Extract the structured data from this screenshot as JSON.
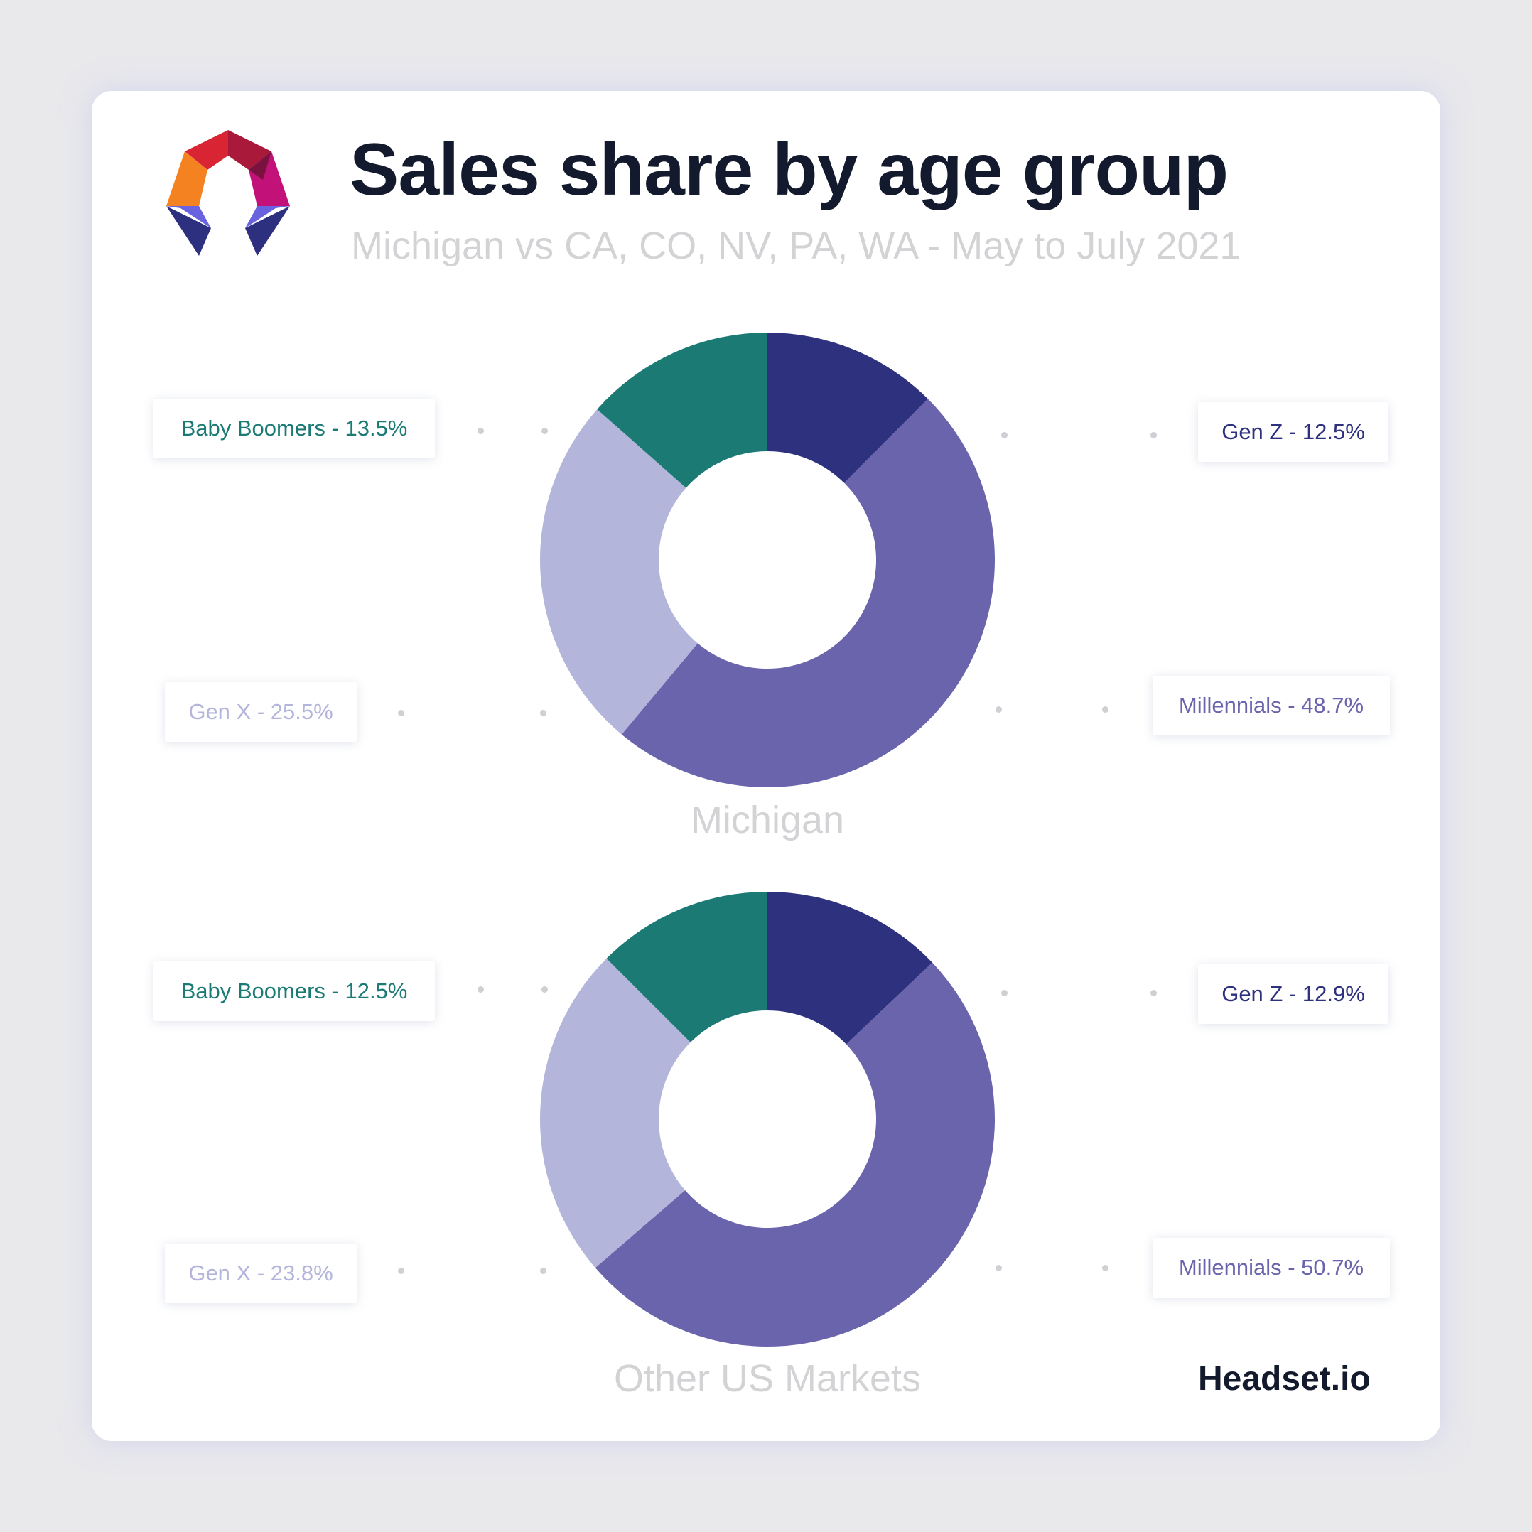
{
  "header": {
    "title": "Sales share by age group",
    "subtitle": "Michigan vs CA, CO, NV, PA, WA - May to July 2021"
  },
  "brand": "Headset.io",
  "colors": {
    "gen_z": "#2e317e",
    "millennials": "#6a64ad",
    "gen_x": "#b4b5db",
    "baby_boomers": "#1c7a74"
  },
  "icons": {
    "logo": "headset-logo-icon"
  },
  "chart_data": [
    {
      "type": "pie",
      "title": "Michigan",
      "categories": [
        "Gen Z",
        "Millennials",
        "Gen X",
        "Baby Boomers"
      ],
      "values": [
        12.5,
        48.7,
        25.5,
        13.5
      ],
      "labels": [
        "Gen Z - 12.5%",
        "Millennials - 48.7%",
        "Gen X - 25.5%",
        "Baby Boomers - 13.5%"
      ]
    },
    {
      "type": "pie",
      "title": "Other US Markets",
      "categories": [
        "Gen Z",
        "Millennials",
        "Gen X",
        "Baby Boomers"
      ],
      "values": [
        12.9,
        50.7,
        23.8,
        12.5
      ],
      "labels": [
        "Gen Z - 12.9%",
        "Millennials - 50.7%",
        "Gen X - 23.8%",
        "Baby Boomers - 12.5%"
      ]
    }
  ]
}
